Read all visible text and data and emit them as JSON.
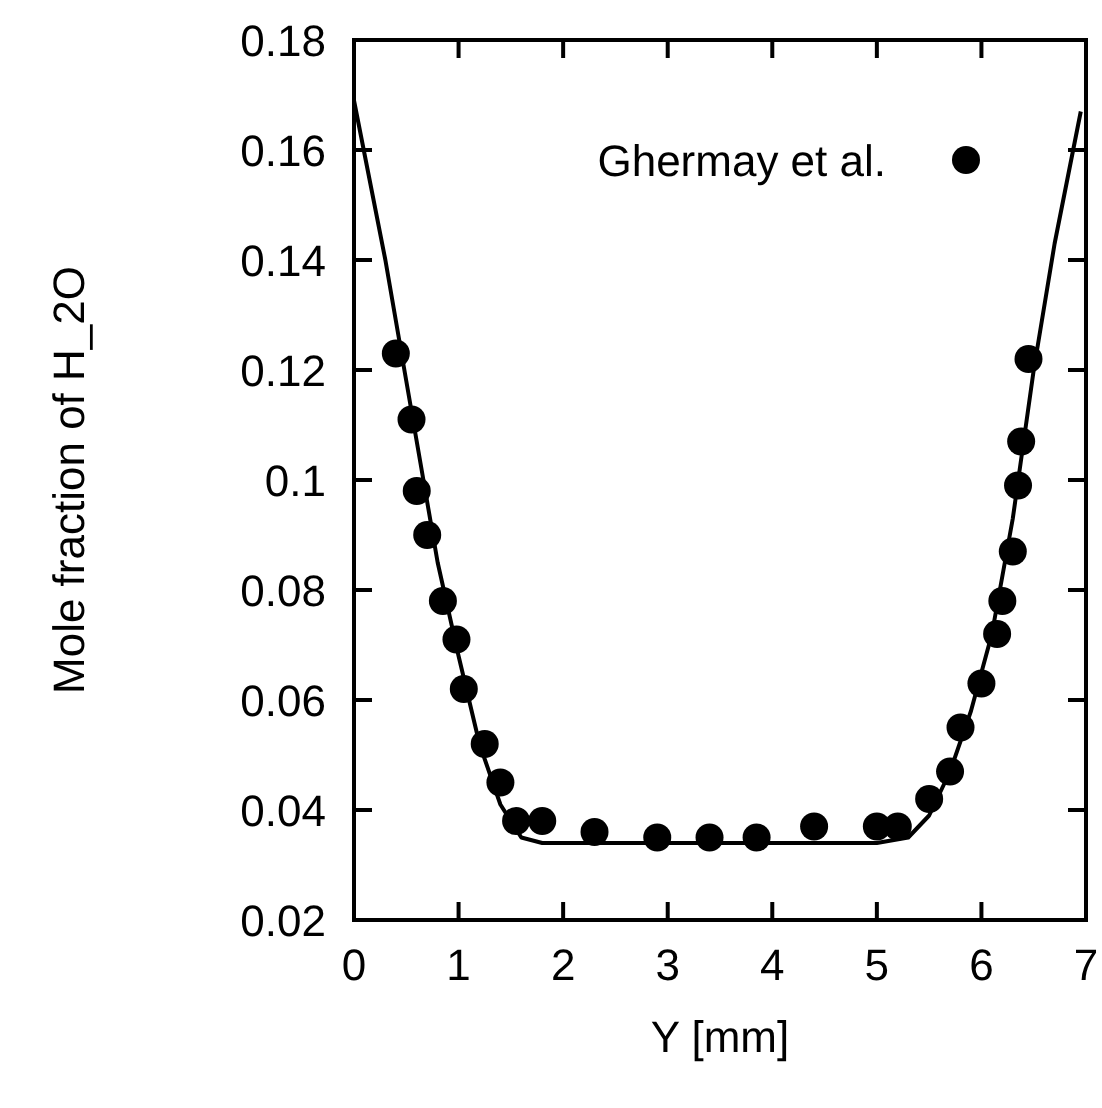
{
  "chart_data": {
    "type": "scatter",
    "xlabel": "Y [mm]",
    "ylabel": "Mole fraction of H_2O",
    "xlim": [
      0,
      7
    ],
    "ylim": [
      0.02,
      0.18
    ],
    "xticks": [
      0,
      1,
      2,
      3,
      4,
      5,
      6,
      7
    ],
    "yticks": [
      0.02,
      0.04,
      0.06,
      0.08,
      {
        "value": 0.1,
        "label": "0.1"
      },
      0.12,
      0.14,
      0.16,
      0.18
    ],
    "grid": false,
    "legend": "top right",
    "series": [
      {
        "type": "line",
        "color": "#000000",
        "line_style": "solid",
        "marker": "none",
        "x": [
          0,
          0.3,
          0.5,
          0.8,
          1.0,
          1.2,
          1.4,
          1.6,
          1.8,
          2.5,
          5.0,
          5.3,
          5.5,
          5.7,
          5.9,
          6.1,
          6.3,
          6.5,
          6.7,
          6.95
        ],
        "values": [
          0.169,
          0.14,
          0.118,
          0.085,
          0.068,
          0.052,
          0.041,
          0.035,
          0.034,
          0.034,
          0.034,
          0.035,
          0.039,
          0.047,
          0.058,
          0.072,
          0.093,
          0.12,
          0.143,
          0.167
        ]
      },
      {
        "name": "Ghermay et al.",
        "color": "#000000",
        "marker": "circle",
        "x": [
          0.4,
          0.55,
          0.6,
          0.7,
          0.85,
          0.98,
          1.05,
          1.25,
          1.4,
          1.55,
          1.8,
          2.3,
          2.9,
          3.4,
          3.85,
          4.4,
          5.0,
          5.2,
          5.5,
          5.7,
          5.8,
          6.0,
          6.15,
          6.2,
          6.3,
          6.35,
          6.38,
          6.45
        ],
        "values": [
          0.123,
          0.111,
          0.098,
          0.09,
          0.078,
          0.071,
          0.062,
          0.052,
          0.045,
          0.038,
          0.038,
          0.036,
          0.035,
          0.035,
          0.035,
          0.037,
          0.037,
          0.037,
          0.042,
          0.047,
          0.055,
          0.063,
          0.072,
          0.078,
          0.087,
          0.099,
          0.107,
          0.122
        ]
      }
    ]
  }
}
